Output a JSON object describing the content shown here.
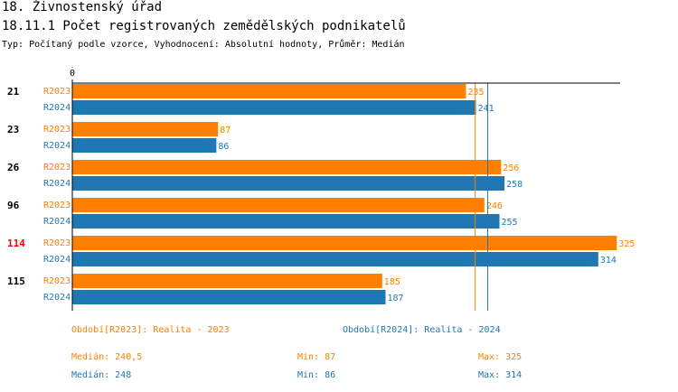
{
  "header": {
    "section": "18. Živnostenský úřad",
    "title": "18.11.1 Počet registrovaných zemědělských podnikatelů",
    "subtitle": "Typ: Počítaný podle vzorce, Vyhodnocení: Absolutní hodnoty, Průměr: Medián"
  },
  "chart_data": {
    "type": "bar",
    "orientation": "horizontal",
    "x_tick_label": "0",
    "categories": [
      "21",
      "23",
      "26",
      "96",
      "114",
      "115"
    ],
    "highlighted_category": "114",
    "highlight_color": "#FF0000",
    "series": [
      {
        "name": "R2023",
        "color": "#FF7F00",
        "values": [
          235,
          87,
          256,
          246,
          325,
          185
        ],
        "median": 240.5
      },
      {
        "name": "R2024",
        "color": "#1F77B4",
        "values": [
          241,
          86,
          258,
          255,
          314,
          187
        ],
        "median": 248
      }
    ],
    "xlim": [
      0,
      330
    ]
  },
  "legend": {
    "r2023": "Období[R2023]: Realita - 2023",
    "r2024": "Období[R2024]: Realita - 2024"
  },
  "stats": {
    "r2023": {
      "median": "Medián: 240,5",
      "min": "Min: 87",
      "max": "Max: 325"
    },
    "r2024": {
      "median": "Medián: 248",
      "min": "Min: 86",
      "max": "Max: 314"
    }
  }
}
